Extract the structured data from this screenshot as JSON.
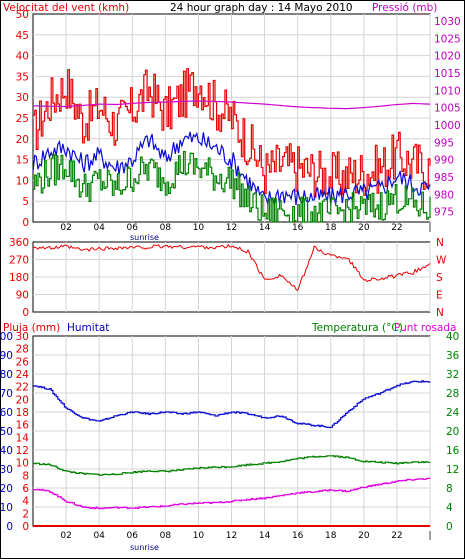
{
  "header": {
    "wind_label": "Velocitat del vent (kmh)",
    "title": "24 hour graph day : 14 Mayo 2010",
    "pressure_label": "Pressió (mb)"
  },
  "panel3_labels": {
    "rain": "Pluja (mm)",
    "humidity": "Humitat",
    "temperature": "Temperatura (°C)",
    "dewpoint": "Punt rosada"
  },
  "x_ticks": [
    "02",
    "04",
    "06",
    "08",
    "10",
    "12",
    "14",
    "16",
    "18",
    "20",
    "22",
    "|"
  ],
  "sunrise_label": "sunrise",
  "colors": {
    "wind_gust": "#e60000",
    "wind_avg": "#0a0ad0",
    "wind_low": "#008000",
    "pressure": "#d000d0",
    "direction": "#e60000",
    "humidity": "#0a0ad0",
    "temperature": "#008000",
    "dewpoint": "#e000e0",
    "rain": "#e60000",
    "grid": "#d4d4d4",
    "axis_red": "#e60000",
    "axis_magenta": "#c000c0",
    "axis_blue": "#0000c0",
    "axis_green": "#008000"
  },
  "chart_data": [
    {
      "id": "wind_pressure",
      "type": "line",
      "title": "24 hour graph day : 14 Mayo 2010",
      "x_hours": [
        0,
        1,
        2,
        3,
        4,
        5,
        6,
        7,
        8,
        9,
        10,
        11,
        12,
        13,
        14,
        15,
        16,
        17,
        18,
        19,
        20,
        21,
        22,
        23,
        24
      ],
      "left_axis": {
        "label": "Velocitat del vent (kmh)",
        "ticks": [
          0,
          5,
          10,
          15,
          20,
          25,
          30,
          35,
          40,
          45,
          50
        ],
        "ylim": [
          0,
          50
        ]
      },
      "right_axis": {
        "label": "Pressió (mb)",
        "ticks": [
          975,
          980,
          985,
          990,
          995,
          1000,
          1005,
          1010,
          1015,
          1020,
          1025,
          1030
        ],
        "ylim": [
          972,
          1032
        ]
      },
      "series": [
        {
          "name": "Velocitat del vent (kmh)",
          "color_key": "wind_gust",
          "axis": "left",
          "values": [
            21,
            29,
            33,
            24,
            28,
            23,
            27,
            32,
            26,
            30,
            34,
            28,
            25,
            19,
            12,
            14,
            13,
            12,
            11,
            11,
            12,
            13,
            16,
            14,
            13
          ]
        },
        {
          "name": "wind_avg",
          "color_key": "wind_avg",
          "axis": "left",
          "values": [
            14,
            17,
            18,
            14,
            16,
            13,
            15,
            20,
            15,
            20,
            20,
            18,
            15,
            10,
            5,
            7,
            6,
            6,
            6,
            7,
            7,
            8,
            11,
            9,
            8
          ]
        },
        {
          "name": "wind_low",
          "color_key": "wind_low",
          "axis": "left",
          "values": [
            9,
            12,
            14,
            8,
            10,
            8,
            11,
            13,
            10,
            14,
            13,
            11,
            10,
            5,
            2,
            3,
            2,
            2,
            2,
            3,
            3,
            4,
            6,
            4,
            3
          ]
        },
        {
          "name": "Pressió (mb)",
          "color_key": "pressure",
          "axis": "right",
          "values": [
            1005.5,
            1005.4,
            1005.3,
            1005.6,
            1006.0,
            1005.9,
            1006.2,
            1006.5,
            1006.6,
            1006.8,
            1006.9,
            1006.8,
            1006.6,
            1006.3,
            1006.0,
            1005.6,
            1005.2,
            1005.0,
            1004.8,
            1004.7,
            1005.0,
            1005.4,
            1005.9,
            1006.2,
            1006.0
          ]
        }
      ]
    },
    {
      "id": "wind_direction",
      "type": "line",
      "x_hours": [
        0,
        1,
        2,
        3,
        4,
        5,
        6,
        7,
        8,
        9,
        10,
        11,
        12,
        13,
        14,
        15,
        16,
        17,
        18,
        19,
        20,
        21,
        22,
        23,
        24
      ],
      "left_axis": {
        "ticks": [
          0,
          90,
          180,
          270,
          360
        ],
        "ylim": [
          0,
          360
        ]
      },
      "right_axis": {
        "ticks": [
          "N",
          "W",
          "S",
          "E",
          "N"
        ]
      },
      "series": [
        {
          "name": "direction",
          "color_key": "direction",
          "axis": "left",
          "values": [
            335,
            328,
            336,
            318,
            325,
            330,
            331,
            333,
            338,
            334,
            336,
            332,
            338,
            310,
            165,
            190,
            110,
            330,
            290,
            280,
            165,
            172,
            185,
            205,
            245
          ]
        }
      ]
    },
    {
      "id": "rain_humidity_temp",
      "type": "line",
      "x_hours": [
        0,
        1,
        2,
        3,
        4,
        5,
        6,
        7,
        8,
        9,
        10,
        11,
        12,
        13,
        14,
        15,
        16,
        17,
        18,
        19,
        20,
        21,
        22,
        23,
        24
      ],
      "left_axis": {
        "label": "Pluja (mm)",
        "ticks": [
          0,
          2,
          4,
          6,
          8,
          10,
          12,
          14,
          16,
          18,
          20,
          22,
          24,
          26,
          28,
          30
        ],
        "ylim": [
          0,
          30
        ]
      },
      "left_axis_humidity": {
        "label": "Humitat",
        "ticks": [
          0,
          10,
          20,
          30,
          40,
          50,
          60,
          70,
          80,
          90,
          100
        ],
        "ylim": [
          0,
          100
        ]
      },
      "right_axis": {
        "label": "Temperatura (°C)",
        "ticks": [
          0,
          4,
          8,
          12,
          16,
          20,
          24,
          28,
          32,
          36,
          40
        ],
        "ylim": [
          0,
          40
        ]
      },
      "series": [
        {
          "name": "Pluja (mm)",
          "color_key": "rain",
          "axis": "left",
          "values": [
            0,
            0,
            0,
            0,
            0,
            0,
            0,
            0,
            0,
            0,
            0,
            0,
            0,
            0,
            0,
            0,
            0,
            0,
            0,
            0,
            0,
            0,
            0,
            0,
            0
          ]
        },
        {
          "name": "Humitat",
          "color_key": "humidity",
          "axis": "humidity",
          "values": [
            74,
            72,
            62,
            57,
            55,
            58,
            60,
            59,
            60,
            59,
            60,
            58,
            60,
            59,
            57,
            58,
            54,
            53,
            52,
            60,
            67,
            70,
            74,
            76,
            76
          ]
        },
        {
          "name": "Temperatura (°C)",
          "color_key": "temperature",
          "axis": "right",
          "values": [
            13.2,
            12.9,
            11.5,
            11.0,
            10.8,
            10.9,
            11.3,
            11.6,
            11.5,
            11.8,
            12.2,
            12.4,
            12.5,
            12.9,
            13.2,
            13.6,
            14.2,
            14.6,
            14.8,
            14.4,
            13.6,
            13.4,
            13.2,
            13.5,
            13.4
          ]
        },
        {
          "name": "Punt rosada",
          "color_key": "dewpoint",
          "axis": "right",
          "values": [
            7.8,
            7.3,
            5.2,
            4.0,
            3.7,
            3.9,
            3.8,
            4.0,
            4.2,
            4.6,
            4.8,
            4.9,
            5.2,
            5.6,
            5.9,
            6.4,
            7.0,
            7.2,
            7.6,
            7.3,
            8.2,
            8.8,
            9.4,
            9.8,
            10.0
          ]
        }
      ]
    }
  ]
}
